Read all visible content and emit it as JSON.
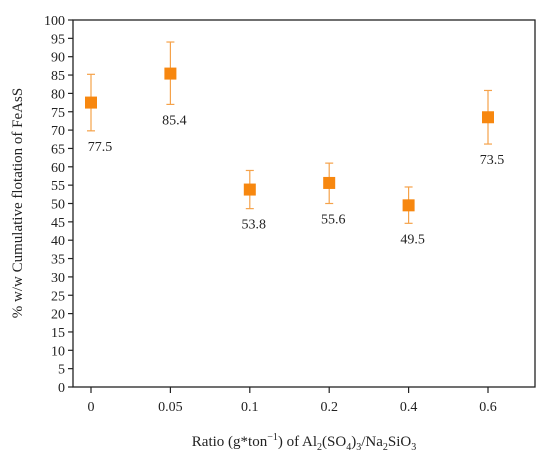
{
  "chart_data": {
    "type": "scatter",
    "categories": [
      "0",
      "0.05",
      "0.1",
      "0.2",
      "0.4",
      "0.6"
    ],
    "values": [
      77.5,
      85.4,
      53.8,
      55.6,
      49.5,
      73.5
    ],
    "error_low": [
      69.8,
      77.0,
      48.6,
      50.0,
      44.6,
      66.2
    ],
    "error_high": [
      85.2,
      94.0,
      59.0,
      61.0,
      54.5,
      80.8
    ],
    "data_labels": [
      "77.5",
      "85.4",
      "53.8",
      "55.6",
      "49.5",
      "73.5"
    ],
    "ylim": [
      0,
      100
    ],
    "ytick_step": 5,
    "ylabel": "% w/w Cumulative flotation of FeAsS",
    "xlabel": {
      "prefix": "Ratio (g*ton",
      "exp": "−1",
      "mid1": ") of Al",
      "sub1": "2",
      "mid2": "(SO",
      "sub2": "4",
      "mid3": ")",
      "sub3": "3",
      "mid4": "/Na",
      "sub4": "2",
      "mid5": "SiO",
      "sub5": "3"
    },
    "grid": false,
    "legend": "none",
    "marker_color": "#f7870f",
    "errorbar_color": "#f5a24a"
  }
}
